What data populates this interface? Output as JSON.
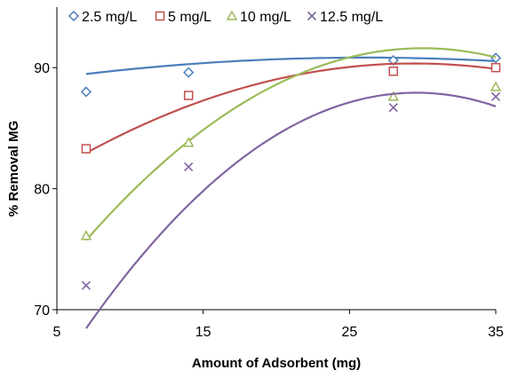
{
  "chart_data": {
    "type": "scatter",
    "xlabel": "Amount of Adsorbent (mg)",
    "ylabel": "% Removal MG",
    "xlim": [
      5,
      35
    ],
    "ylim": [
      70,
      95
    ],
    "xticks": [
      5,
      15,
      25,
      35
    ],
    "yticks": [
      70,
      80,
      90
    ],
    "xtick_labels": [
      "5",
      "15",
      "25",
      "35"
    ],
    "ytick_labels": [
      "70",
      "80",
      "90"
    ],
    "grid": false,
    "legend_position": "top",
    "trendline": "polynomial order 2",
    "series": [
      {
        "name": "2.5 mg/L",
        "marker": "diamond",
        "color": "#4a7ebb",
        "x": [
          7,
          14,
          28,
          35
        ],
        "y": [
          88.0,
          89.6,
          90.6,
          90.8
        ],
        "fit": [
          -0.00371,
          0.1937,
          88.3
        ]
      },
      {
        "name": "5 mg/L",
        "marker": "square",
        "color": "#c0504d",
        "x": [
          7,
          14,
          28,
          35
        ],
        "y": [
          83.3,
          87.7,
          89.7,
          90.0
        ],
        "fit": [
          -0.01471,
          0.8659,
          77.6
        ]
      },
      {
        "name": "10 mg/L",
        "marker": "triangle",
        "color": "#9bbb59",
        "x": [
          7,
          14,
          28,
          35
        ],
        "y": [
          76.1,
          83.8,
          87.6,
          88.4
        ],
        "fit": [
          -0.03,
          1.8,
          64.6
        ]
      },
      {
        "name": "12.5 mg/L",
        "marker": "x",
        "color": "#8064a2",
        "x": [
          7,
          14,
          28,
          35
        ],
        "y": [
          72.0,
          81.8,
          86.7,
          87.6
        ],
        "fit": [
          -0.03824,
          2.2612,
          54.5
        ]
      }
    ]
  }
}
